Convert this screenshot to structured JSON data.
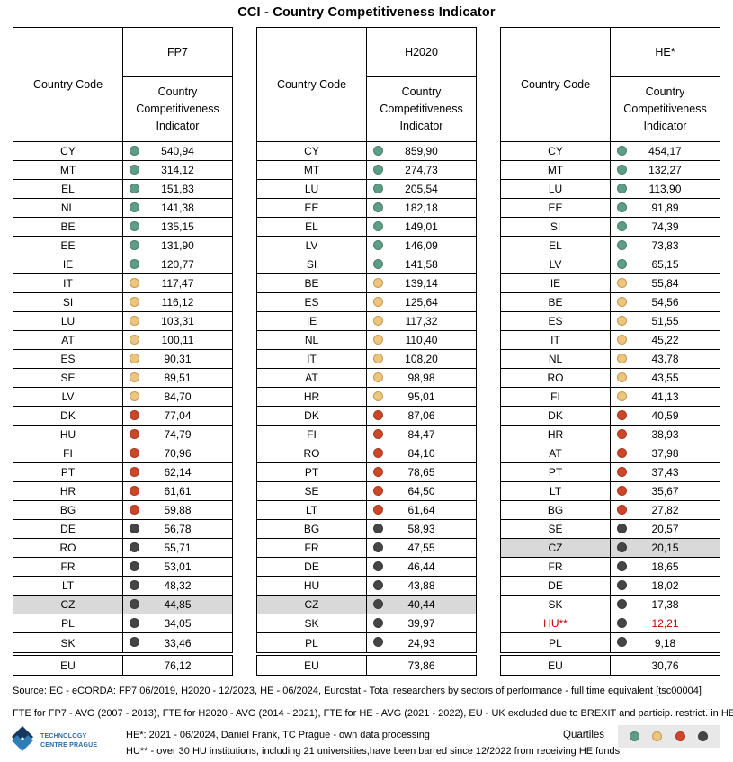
{
  "title": "CCI - Country Competitiveness Indicator",
  "quartile_colors": {
    "green": {
      "fill": "#5E9D86",
      "stroke": "#49806C"
    },
    "yellow": {
      "fill": "#ECC67F",
      "stroke": "#C9984F"
    },
    "red": {
      "fill": "#CC4628",
      "stroke": "#A83A20"
    },
    "dark": {
      "fill": "#454545",
      "stroke": "#3A3A3A"
    }
  },
  "highlight_color": "#D9D9D9",
  "alert_color": "#C00000",
  "chart_data": [
    {
      "type": "table",
      "title": "FP7",
      "columns": [
        "Country Code",
        "Country Competitiveness Indicator"
      ],
      "rows": [
        {
          "code": "CY",
          "value": "540,94",
          "quartile": "green"
        },
        {
          "code": "MT",
          "value": "314,12",
          "quartile": "green"
        },
        {
          "code": "EL",
          "value": "151,83",
          "quartile": "green"
        },
        {
          "code": "NL",
          "value": "141,38",
          "quartile": "green"
        },
        {
          "code": "BE",
          "value": "135,15",
          "quartile": "green"
        },
        {
          "code": "EE",
          "value": "131,90",
          "quartile": "green"
        },
        {
          "code": "IE",
          "value": "120,77",
          "quartile": "green"
        },
        {
          "code": "IT",
          "value": "117,47",
          "quartile": "yellow"
        },
        {
          "code": "SI",
          "value": "116,12",
          "quartile": "yellow"
        },
        {
          "code": "LU",
          "value": "103,31",
          "quartile": "yellow"
        },
        {
          "code": "AT",
          "value": "100,11",
          "quartile": "yellow"
        },
        {
          "code": "ES",
          "value": "90,31",
          "quartile": "yellow"
        },
        {
          "code": "SE",
          "value": "89,51",
          "quartile": "yellow"
        },
        {
          "code": "LV",
          "value": "84,70",
          "quartile": "yellow"
        },
        {
          "code": "DK",
          "value": "77,04",
          "quartile": "red"
        },
        {
          "code": "HU",
          "value": "74,79",
          "quartile": "red"
        },
        {
          "code": "FI",
          "value": "70,96",
          "quartile": "red"
        },
        {
          "code": "PT",
          "value": "62,14",
          "quartile": "red"
        },
        {
          "code": "HR",
          "value": "61,61",
          "quartile": "red"
        },
        {
          "code": "BG",
          "value": "59,88",
          "quartile": "red"
        },
        {
          "code": "DE",
          "value": "56,78",
          "quartile": "dark"
        },
        {
          "code": "RO",
          "value": "55,71",
          "quartile": "dark"
        },
        {
          "code": "FR",
          "value": "53,01",
          "quartile": "dark"
        },
        {
          "code": "LT",
          "value": "48,32",
          "quartile": "dark"
        },
        {
          "code": "CZ",
          "value": "44,85",
          "quartile": "dark",
          "highlight": true
        },
        {
          "code": "PL",
          "value": "34,05",
          "quartile": "dark"
        },
        {
          "code": "SK",
          "value": "33,46",
          "quartile": "dark"
        }
      ],
      "eu": {
        "code": "EU",
        "value": "76,12"
      }
    },
    {
      "type": "table",
      "title": "H2020",
      "columns": [
        "Country Code",
        "Country Competitiveness Indicator"
      ],
      "rows": [
        {
          "code": "CY",
          "value": "859,90",
          "quartile": "green"
        },
        {
          "code": "MT",
          "value": "274,73",
          "quartile": "green"
        },
        {
          "code": "LU",
          "value": "205,54",
          "quartile": "green"
        },
        {
          "code": "EE",
          "value": "182,18",
          "quartile": "green"
        },
        {
          "code": "EL",
          "value": "149,01",
          "quartile": "green"
        },
        {
          "code": "LV",
          "value": "146,09",
          "quartile": "green"
        },
        {
          "code": "SI",
          "value": "141,58",
          "quartile": "green"
        },
        {
          "code": "BE",
          "value": "139,14",
          "quartile": "yellow"
        },
        {
          "code": "ES",
          "value": "125,64",
          "quartile": "yellow"
        },
        {
          "code": "IE",
          "value": "117,32",
          "quartile": "yellow"
        },
        {
          "code": "NL",
          "value": "110,40",
          "quartile": "yellow"
        },
        {
          "code": "IT",
          "value": "108,20",
          "quartile": "yellow"
        },
        {
          "code": "AT",
          "value": "98,98",
          "quartile": "yellow"
        },
        {
          "code": "HR",
          "value": "95,01",
          "quartile": "yellow"
        },
        {
          "code": "DK",
          "value": "87,06",
          "quartile": "red"
        },
        {
          "code": "FI",
          "value": "84,47",
          "quartile": "red"
        },
        {
          "code": "RO",
          "value": "84,10",
          "quartile": "red"
        },
        {
          "code": "PT",
          "value": "78,65",
          "quartile": "red"
        },
        {
          "code": "SE",
          "value": "64,50",
          "quartile": "red"
        },
        {
          "code": "LT",
          "value": "61,64",
          "quartile": "red"
        },
        {
          "code": "BG",
          "value": "58,93",
          "quartile": "dark"
        },
        {
          "code": "FR",
          "value": "47,55",
          "quartile": "dark"
        },
        {
          "code": "DE",
          "value": "46,44",
          "quartile": "dark"
        },
        {
          "code": "HU",
          "value": "43,88",
          "quartile": "dark"
        },
        {
          "code": "CZ",
          "value": "40,44",
          "quartile": "dark",
          "highlight": true
        },
        {
          "code": "SK",
          "value": "39,97",
          "quartile": "dark"
        },
        {
          "code": "PL",
          "value": "24,93",
          "quartile": "dark"
        }
      ],
      "eu": {
        "code": "EU",
        "value": "73,86"
      }
    },
    {
      "type": "table",
      "title": "HE*",
      "columns": [
        "Country Code",
        "Country Competitiveness Indicator"
      ],
      "rows": [
        {
          "code": "CY",
          "value": "454,17",
          "quartile": "green"
        },
        {
          "code": "MT",
          "value": "132,27",
          "quartile": "green"
        },
        {
          "code": "LU",
          "value": "113,90",
          "quartile": "green"
        },
        {
          "code": "EE",
          "value": "91,89",
          "quartile": "green"
        },
        {
          "code": "SI",
          "value": "74,39",
          "quartile": "green"
        },
        {
          "code": "EL",
          "value": "73,83",
          "quartile": "green"
        },
        {
          "code": "LV",
          "value": "65,15",
          "quartile": "green"
        },
        {
          "code": "IE",
          "value": "55,84",
          "quartile": "yellow"
        },
        {
          "code": "BE",
          "value": "54,56",
          "quartile": "yellow"
        },
        {
          "code": "ES",
          "value": "51,55",
          "quartile": "yellow"
        },
        {
          "code": "IT",
          "value": "45,22",
          "quartile": "yellow"
        },
        {
          "code": "NL",
          "value": "43,78",
          "quartile": "yellow"
        },
        {
          "code": "RO",
          "value": "43,55",
          "quartile": "yellow"
        },
        {
          "code": "FI",
          "value": "41,13",
          "quartile": "yellow"
        },
        {
          "code": "DK",
          "value": "40,59",
          "quartile": "red"
        },
        {
          "code": "HR",
          "value": "38,93",
          "quartile": "red"
        },
        {
          "code": "AT",
          "value": "37,98",
          "quartile": "red"
        },
        {
          "code": "PT",
          "value": "37,43",
          "quartile": "red"
        },
        {
          "code": "LT",
          "value": "35,67",
          "quartile": "red"
        },
        {
          "code": "BG",
          "value": "27,82",
          "quartile": "red"
        },
        {
          "code": "SE",
          "value": "20,57",
          "quartile": "dark"
        },
        {
          "code": "CZ",
          "value": "20,15",
          "quartile": "dark",
          "highlight": true
        },
        {
          "code": "FR",
          "value": "18,65",
          "quartile": "dark"
        },
        {
          "code": "DE",
          "value": "18,02",
          "quartile": "dark"
        },
        {
          "code": "SK",
          "value": "17,38",
          "quartile": "dark"
        },
        {
          "code": "HU**",
          "value": "12,21",
          "quartile": "dark",
          "alert": true
        },
        {
          "code": "PL",
          "value": "9,18",
          "quartile": "dark"
        }
      ],
      "eu": {
        "code": "EU",
        "value": "30,76"
      }
    }
  ],
  "legend": {
    "label": "Quartiles",
    "quartiles": [
      "green",
      "yellow",
      "red",
      "dark"
    ]
  },
  "footer": {
    "source_line": "Source: EC - eCORDA: FP7 06/2019, H2020 - 12/2023, HE - 06/2024, Eurostat -  Total researchers by sectors of performance - full time equivalent [tsc00004]",
    "fte_line": "FTE for FP7 - AVG (2007 - 2013), FTE for H2020 - AVG (2014 - 2021), FTE for HE - AVG (2021 - 2022), EU - UK excluded due to BREXIT and particip. restrict. in HE",
    "he_line": "HE*: 2021 - 06/2024, Daniel Frank, TC Prague - own data processing",
    "hu_note": "HU** - over 30 HU institutions, including 21 universities,have been barred since 12/2022 from receiving HE funds",
    "logo_line1": "TECHNOLOGY",
    "logo_line2": "CENTRE PRAGUE"
  }
}
